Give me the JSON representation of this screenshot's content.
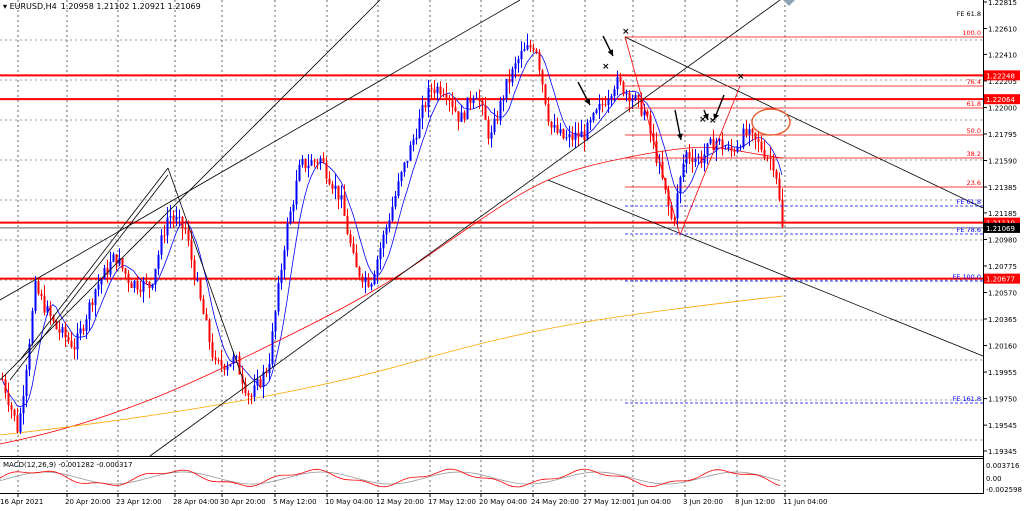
{
  "chart_data": {
    "type": "candlestick",
    "header": {
      "symbol_label": "EURUSD,H4",
      "ohlc_text": "1.20958 1.21102 1.20921 1.21069"
    },
    "price_axis_ticks": [
      "1.22815",
      "1.22610",
      "1.22410",
      "1.22205",
      "1.22000",
      "1.21795",
      "1.21590",
      "1.21385",
      "1.21185",
      "1.20980",
      "1.20775",
      "1.20570",
      "1.20365",
      "1.20160",
      "1.19955",
      "1.19750",
      "1.19545",
      "1.19345"
    ],
    "time_axis_labels": [
      "16 Apr 2021",
      "20 Apr 20:00",
      "23 Apr 12:00",
      "28 Apr 04:00",
      "30 Apr 20:00",
      "5 May 12:00",
      "10 May 04:00",
      "12 May 20:00",
      "17 May 12:00",
      "20 May 04:00",
      "24 May 20:00",
      "27 May 12:00",
      "1 Jun 04:00",
      "3 Jun 20:00",
      "8 Jun 12:00",
      "11 Jun 04:00"
    ],
    "price_boxes": [
      {
        "price": "1.22248",
        "color": "#ff0000"
      },
      {
        "price": "1.22064",
        "color": "#ff0000"
      },
      {
        "price": "1.21110",
        "color": "#ff0000"
      },
      {
        "price": "1.21069",
        "color": "#000000"
      },
      {
        "price": "1.20677",
        "color": "#ff0000"
      }
    ],
    "fibonacci_retracement": {
      "levels": [
        "100.0",
        "76.4",
        "61.8",
        "50.0",
        "38.2",
        "23.6"
      ],
      "color": "#ff0000"
    },
    "fibonacci_expansion": {
      "labels": [
        "FE 61.8",
        "FE 61.8",
        "FE 78.6",
        "FE 100.0",
        "FE 161.8"
      ],
      "color": "#0000ff"
    },
    "indicator": {
      "label": "MACD(12,26,9) -0.001282 -0.000317",
      "ticks": [
        "0.003716",
        "0.00",
        "-0.002598"
      ]
    },
    "series_colors": {
      "bull": "#0000ff",
      "bear": "#ff0000",
      "ma_fast": "#0000ff",
      "ma_mid": "#ff0000",
      "ma_slow": "#ffa500",
      "macd_signal": "#ff0000",
      "macd_main": "#999999"
    },
    "channel_color": "#000000",
    "grid": true
  }
}
